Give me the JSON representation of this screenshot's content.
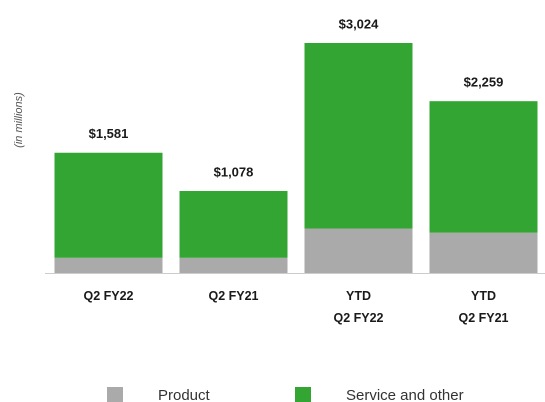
{
  "chart_data": {
    "type": "stacked-bar",
    "y_label": "(in millions)",
    "categories": [
      "Q2 FY22",
      "Q2 FY21",
      "YTD\nQ2 FY22",
      "YTD\nQ2 FY21"
    ],
    "series": [
      {
        "name": "Product",
        "color": "#aaaaaa",
        "values": [
          200,
          200,
          585,
          530
        ]
      },
      {
        "name": "Service and other",
        "color": "#33a532",
        "values": [
          1381,
          878,
          2439,
          1729
        ]
      }
    ],
    "totals": [
      1581,
      1078,
      3024,
      2259
    ],
    "total_labels": [
      "$1,581",
      "$1,078",
      "$3,024",
      "$2,259"
    ],
    "legend": "bottom"
  }
}
